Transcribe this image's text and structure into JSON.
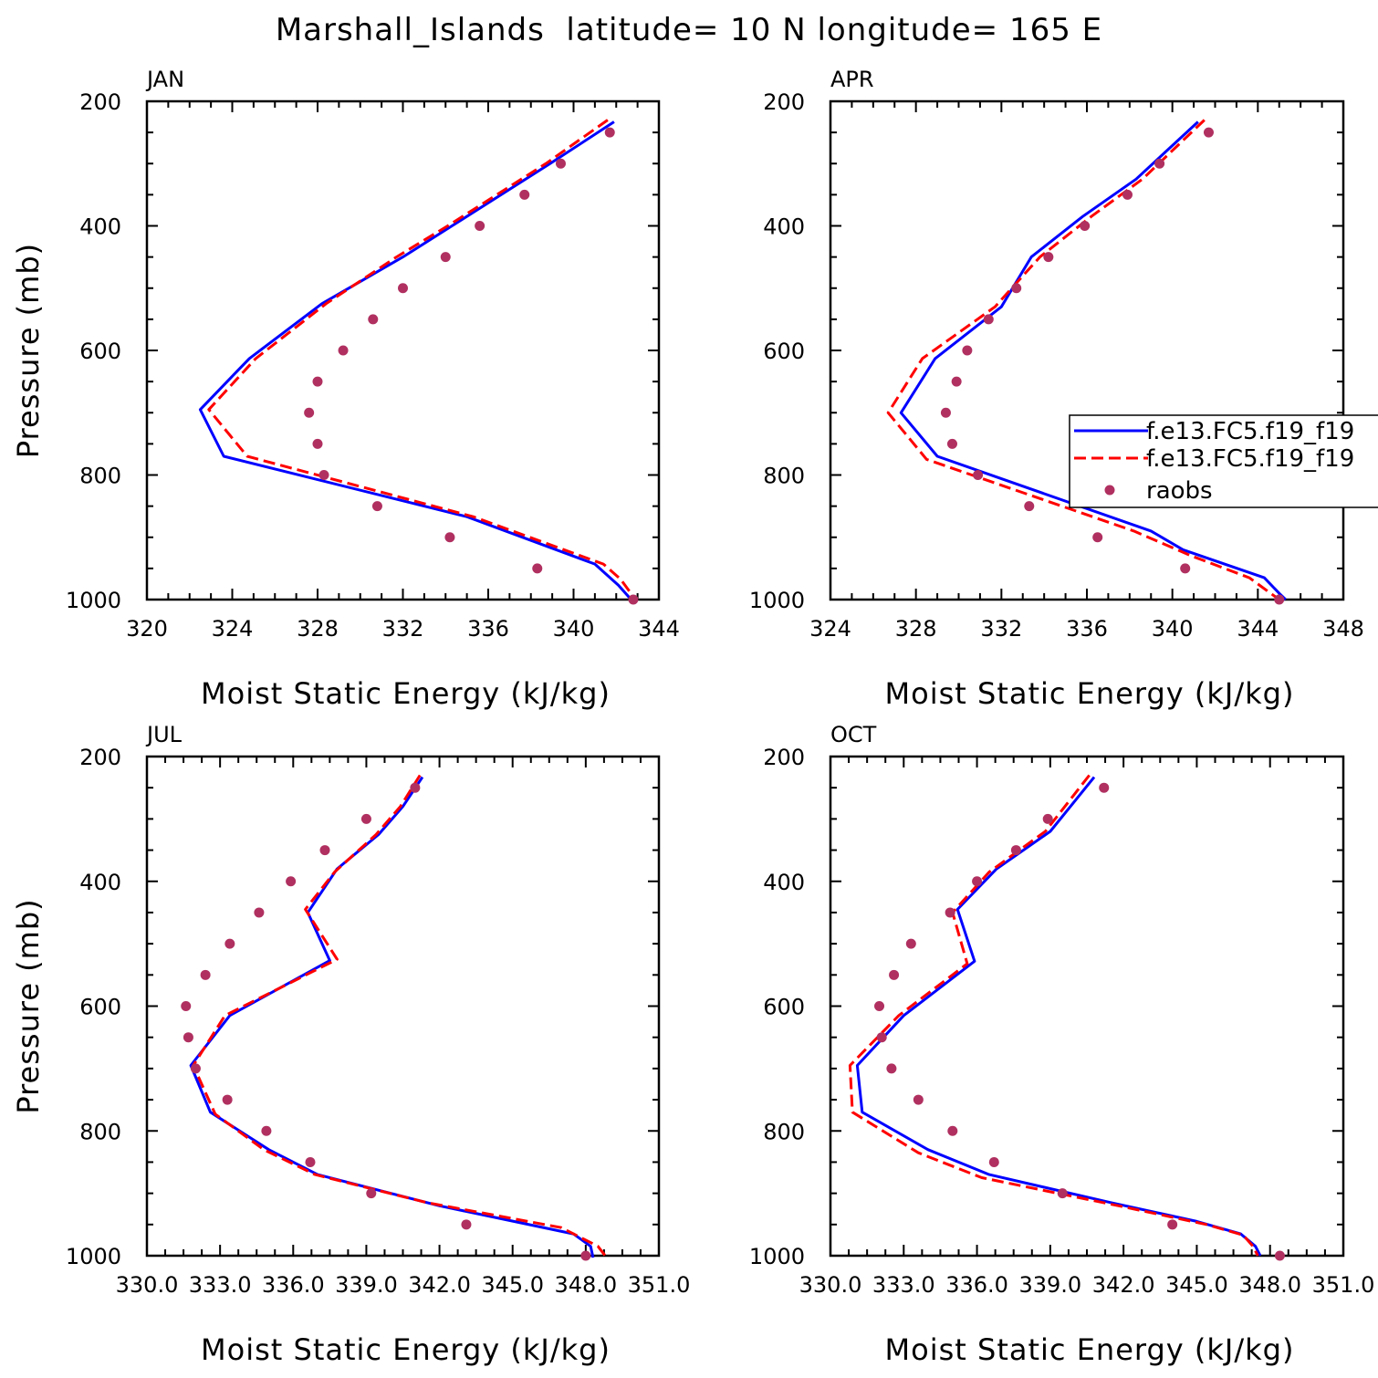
{
  "figure": {
    "title": "Marshall_Islands  latitude= 10 N longitude= 165 E"
  },
  "legend": {
    "entries": [
      {
        "label": "f.e13.FC5.f19_f19",
        "series": "model_a"
      },
      {
        "label": "f.e13.FC5.f19_f19",
        "series": "model_b"
      },
      {
        "label": "raobs",
        "series": "raobs"
      }
    ]
  },
  "colors": {
    "model_a": "#0000ff",
    "model_b": "#ff0000",
    "raobs": "#b03060",
    "axis": "#000000"
  },
  "chart_data": [
    {
      "type": "line",
      "panel": "JAN",
      "title": "JAN",
      "xlabel": "Moist Static Energy (kJ/kg)",
      "ylabel": "Pressure (mb)",
      "xlim": [
        320,
        344
      ],
      "ylim": [
        1000,
        200
      ],
      "x_ticks": [
        320,
        324,
        328,
        332,
        336,
        340,
        344
      ],
      "x_tick_labels": [
        "320",
        "324",
        "328",
        "332",
        "336",
        "340",
        "344"
      ],
      "y_ticks": [
        200,
        400,
        600,
        800,
        1000
      ],
      "y_tick_labels": [
        "200",
        "400",
        "600",
        "800",
        "1000"
      ],
      "series": [
        {
          "name": "model_a",
          "style": "solid",
          "pressure": [
            233,
            300,
            400,
            450,
            525,
            613,
            695,
            770,
            867,
            943,
            977,
            1000
          ],
          "mse": [
            341.9,
            338.9,
            334.3,
            332.0,
            328.2,
            324.8,
            322.5,
            323.6,
            335.0,
            341.0,
            342.1,
            342.7
          ]
        },
        {
          "name": "model_b",
          "style": "dashed",
          "pressure": [
            230,
            300,
            400,
            450,
            525,
            613,
            695,
            770,
            867,
            943,
            967,
            1000
          ],
          "mse": [
            341.6,
            338.7,
            334.1,
            331.7,
            328.4,
            325.1,
            322.9,
            324.7,
            335.3,
            341.4,
            342.2,
            342.9
          ]
        },
        {
          "name": "raobs",
          "style": "markers",
          "pressure": [
            250,
            300,
            350,
            400,
            450,
            500,
            550,
            600,
            650,
            700,
            750,
            800,
            850,
            900,
            950,
            1000
          ],
          "mse": [
            341.7,
            339.4,
            337.7,
            335.6,
            334.0,
            332.0,
            330.6,
            329.2,
            328.0,
            327.6,
            328.0,
            328.3,
            330.8,
            334.2,
            338.3,
            342.8
          ]
        }
      ]
    },
    {
      "type": "line",
      "panel": "APR",
      "title": "APR",
      "xlabel": "Moist Static Energy (kJ/kg)",
      "ylabel": "",
      "xlim": [
        324,
        348
      ],
      "ylim": [
        1000,
        200
      ],
      "x_ticks": [
        324,
        328,
        332,
        336,
        340,
        344,
        348
      ],
      "x_tick_labels": [
        "324",
        "328",
        "332",
        "336",
        "340",
        "344",
        "348"
      ],
      "y_ticks": [
        200,
        400,
        600,
        800,
        1000
      ],
      "y_tick_labels": [
        "200",
        "400",
        "600",
        "800",
        "1000"
      ],
      "series": [
        {
          "name": "model_a",
          "style": "solid",
          "pressure": [
            233,
            325,
            385,
            450,
            530,
            613,
            700,
            770,
            890,
            920,
            965,
            990,
            1000
          ],
          "mse": [
            341.2,
            338.3,
            335.8,
            333.4,
            332.0,
            328.9,
            327.3,
            329.0,
            339.0,
            340.5,
            344.3,
            345.0,
            345.3
          ]
        },
        {
          "name": "model_b",
          "style": "dashed",
          "pressure": [
            230,
            325,
            385,
            450,
            530,
            613,
            700,
            775,
            890,
            930,
            965,
            990,
            1000
          ],
          "mse": [
            341.5,
            338.6,
            336.2,
            333.8,
            331.7,
            328.3,
            326.7,
            328.5,
            338.2,
            340.9,
            343.6,
            344.6,
            345.0
          ]
        },
        {
          "name": "raobs",
          "style": "markers",
          "pressure": [
            250,
            300,
            350,
            400,
            450,
            500,
            550,
            600,
            650,
            700,
            750,
            800,
            850,
            900,
            950,
            1000
          ],
          "mse": [
            341.7,
            339.4,
            337.9,
            335.9,
            334.2,
            332.7,
            331.4,
            330.4,
            329.9,
            329.4,
            329.7,
            330.9,
            333.3,
            336.5,
            340.6,
            345.0
          ]
        }
      ]
    },
    {
      "type": "line",
      "panel": "JUL",
      "title": "JUL",
      "xlabel": "Moist Static Energy (kJ/kg)",
      "ylabel": "Pressure (mb)",
      "xlim": [
        330.0,
        351.0
      ],
      "ylim": [
        1000,
        200
      ],
      "x_ticks": [
        330.0,
        333.0,
        336.0,
        339.0,
        342.0,
        345.0,
        348.0,
        351.0
      ],
      "x_tick_labels": [
        "330.0",
        "333.0",
        "336.0",
        "339.0",
        "342.0",
        "345.0",
        "348.0",
        "351.0"
      ],
      "y_ticks": [
        200,
        400,
        600,
        800,
        1000
      ],
      "y_tick_labels": [
        "200",
        "400",
        "600",
        "800",
        "1000"
      ],
      "series": [
        {
          "name": "model_a",
          "style": "solid",
          "pressure": [
            233,
            280,
            325,
            380,
            450,
            527,
            615,
            695,
            770,
            830,
            870,
            920,
            965,
            985,
            1003
          ],
          "mse": [
            341.3,
            340.5,
            339.5,
            337.8,
            336.6,
            337.5,
            333.4,
            331.8,
            332.6,
            335.0,
            337.0,
            342.0,
            347.5,
            348.2,
            348.3
          ]
        },
        {
          "name": "model_b",
          "style": "dashed",
          "pressure": [
            230,
            280,
            325,
            385,
            445,
            525,
            615,
            695,
            773,
            830,
            870,
            915,
            955,
            985,
            1000
          ],
          "mse": [
            341.2,
            340.4,
            339.4,
            337.7,
            336.5,
            337.8,
            333.2,
            331.9,
            332.8,
            334.8,
            336.9,
            341.5,
            347.0,
            348.5,
            348.8
          ]
        },
        {
          "name": "raobs",
          "style": "markers",
          "pressure": [
            250,
            300,
            350,
            400,
            450,
            500,
            550,
            600,
            650,
            700,
            750,
            800,
            850,
            900,
            950,
            1000
          ],
          "mse": [
            341.0,
            339.0,
            337.3,
            335.9,
            334.6,
            333.4,
            332.4,
            331.6,
            331.7,
            332.0,
            333.3,
            334.9,
            336.7,
            339.2,
            343.1,
            348.0
          ]
        }
      ]
    },
    {
      "type": "line",
      "panel": "OCT",
      "title": "OCT",
      "xlabel": "Moist Static Energy (kJ/kg)",
      "ylabel": "",
      "xlim": [
        330.0,
        351.0
      ],
      "ylim": [
        1000,
        200
      ],
      "x_ticks": [
        330.0,
        333.0,
        336.0,
        339.0,
        342.0,
        345.0,
        348.0,
        351.0
      ],
      "x_tick_labels": [
        "330.0",
        "333.0",
        "336.0",
        "339.0",
        "342.0",
        "345.0",
        "348.0",
        "351.0"
      ],
      "y_ticks": [
        200,
        400,
        600,
        800,
        1000
      ],
      "y_tick_labels": [
        "200",
        "400",
        "600",
        "800",
        "1000"
      ],
      "series": [
        {
          "name": "model_a",
          "style": "solid",
          "pressure": [
            233,
            320,
            380,
            445,
            528,
            615,
            695,
            770,
            830,
            870,
            915,
            945,
            965,
            985,
            1000
          ],
          "mse": [
            340.8,
            339.0,
            336.8,
            335.2,
            335.9,
            333.0,
            331.1,
            331.3,
            334.0,
            336.5,
            341.5,
            345.0,
            346.8,
            347.4,
            347.6
          ]
        },
        {
          "name": "model_b",
          "style": "dashed",
          "pressure": [
            230,
            320,
            385,
            450,
            532,
            615,
            695,
            770,
            835,
            875,
            920,
            950,
            967,
            985,
            1000
          ],
          "mse": [
            340.6,
            338.8,
            336.5,
            335.0,
            335.6,
            332.8,
            330.8,
            330.9,
            333.6,
            336.2,
            341.8,
            345.4,
            346.9,
            347.3,
            347.5
          ]
        },
        {
          "name": "raobs",
          "style": "markers",
          "pressure": [
            250,
            300,
            350,
            400,
            450,
            500,
            550,
            600,
            650,
            700,
            750,
            800,
            850,
            900,
            950,
            1000
          ],
          "mse": [
            341.2,
            338.9,
            337.6,
            336.0,
            334.9,
            333.3,
            332.6,
            332.0,
            332.1,
            332.5,
            333.6,
            335.0,
            336.7,
            339.5,
            344.0,
            348.4
          ]
        }
      ]
    }
  ]
}
